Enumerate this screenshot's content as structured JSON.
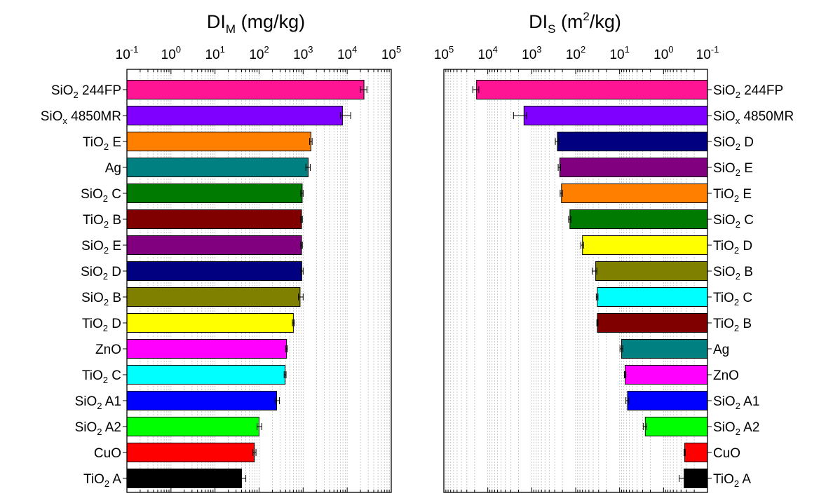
{
  "chart_data": [
    {
      "type": "bar",
      "orientation": "horizontal",
      "title": {
        "main": "DI",
        "sub": "M",
        "sup": "",
        "unit": " (mg/kg)"
      },
      "xscale": "log",
      "xlim": [
        0.1,
        100000
      ],
      "x_reversed": false,
      "tick_labels": [
        {
          "base": "10",
          "exp": "-1"
        },
        {
          "base": "10",
          "exp": "0"
        },
        {
          "base": "10",
          "exp": "1"
        },
        {
          "base": "10",
          "exp": "2"
        },
        {
          "base": "10",
          "exp": "3"
        },
        {
          "base": "10",
          "exp": "4"
        },
        {
          "base": "10",
          "exp": "5"
        }
      ],
      "category_side": "left",
      "categories": [
        {
          "main": "SiO",
          "sub": "2",
          "rest": " 244FP",
          "value": 24000,
          "err_low": 20000,
          "err_high": 28000,
          "color": "#ff1493"
        },
        {
          "main": "SiO",
          "sub": "x",
          "rest": " 4850MR",
          "value": 7800,
          "err_low": 7000,
          "err_high": 12000,
          "color": "#8000ff"
        },
        {
          "main": "TiO",
          "sub": "2",
          "rest": " E",
          "value": 1500,
          "err_low": 1400,
          "err_high": 1600,
          "color": "#ff8000"
        },
        {
          "main": "Ag",
          "sub": "",
          "rest": "",
          "value": 1300,
          "err_low": 1150,
          "err_high": 1450,
          "color": "#008080"
        },
        {
          "main": "SiO",
          "sub": "2",
          "rest": " C",
          "value": 950,
          "err_low": 880,
          "err_high": 1000,
          "color": "#007a00"
        },
        {
          "main": "TiO",
          "sub": "2",
          "rest": " B",
          "value": 920,
          "err_low": 880,
          "err_high": 960,
          "color": "#800000"
        },
        {
          "main": "SiO",
          "sub": "2",
          "rest": " E",
          "value": 920,
          "err_low": 880,
          "err_high": 960,
          "color": "#800080"
        },
        {
          "main": "SiO",
          "sub": "2",
          "rest": " D",
          "value": 930,
          "err_low": 880,
          "err_high": 1000,
          "color": "#000080"
        },
        {
          "main": "SiO",
          "sub": "2",
          "rest": " B",
          "value": 850,
          "err_low": 780,
          "err_high": 1000,
          "color": "#808000"
        },
        {
          "main": "TiO",
          "sub": "2",
          "rest": " D",
          "value": 600,
          "err_low": 570,
          "err_high": 630,
          "color": "#ffff00"
        },
        {
          "main": "ZnO",
          "sub": "",
          "rest": "",
          "value": 420,
          "err_low": 400,
          "err_high": 440,
          "color": "#ff00ff"
        },
        {
          "main": "TiO",
          "sub": "2",
          "rest": " C",
          "value": 390,
          "err_low": 370,
          "err_high": 410,
          "color": "#00ffff"
        },
        {
          "main": "SiO",
          "sub": "2",
          "rest": " A1",
          "value": 250,
          "err_low": 230,
          "err_high": 290,
          "color": "#0000ff"
        },
        {
          "main": "SiO",
          "sub": "2",
          "rest": " A2",
          "value": 100,
          "err_low": 90,
          "err_high": 115,
          "color": "#00ff00"
        },
        {
          "main": "CuO",
          "sub": "",
          "rest": "",
          "value": 78,
          "err_low": 72,
          "err_high": 85,
          "color": "#ff0000"
        },
        {
          "main": "TiO",
          "sub": "2",
          "rest": " A",
          "value": 40,
          "err_low": 35,
          "err_high": 50,
          "color": "#000000"
        }
      ]
    },
    {
      "type": "bar",
      "orientation": "horizontal",
      "title": {
        "main": "DI",
        "sub": "S",
        "sup": "2",
        "unit": " (m",
        "unit_after": "/kg)"
      },
      "xscale": "log",
      "xlim": [
        100000,
        0.1
      ],
      "x_reversed": true,
      "tick_labels": [
        {
          "base": "10",
          "exp": "5"
        },
        {
          "base": "10",
          "exp": "4"
        },
        {
          "base": "10",
          "exp": "3"
        },
        {
          "base": "10",
          "exp": "2"
        },
        {
          "base": "10",
          "exp": "1"
        },
        {
          "base": "10",
          "exp": "0"
        },
        {
          "base": "10",
          "exp": "-1"
        }
      ],
      "category_side": "right",
      "categories": [
        {
          "main": "SiO",
          "sub": "2",
          "rest": " 244FP",
          "value": 18000,
          "err_low": 16000,
          "err_high": 22000,
          "color": "#ff1493"
        },
        {
          "main": "SiO",
          "sub": "x",
          "rest": " 4850MR",
          "value": 1500,
          "err_low": 1300,
          "err_high": 2600,
          "color": "#8000ff"
        },
        {
          "main": "SiO",
          "sub": "2",
          "rest": " D",
          "value": 260,
          "err_low": 240,
          "err_high": 290,
          "color": "#000080"
        },
        {
          "main": "SiO",
          "sub": "2",
          "rest": " E",
          "value": 230,
          "err_low": 220,
          "err_high": 250,
          "color": "#800080"
        },
        {
          "main": "TiO",
          "sub": "2",
          "rest": " E",
          "value": 210,
          "err_low": 200,
          "err_high": 225,
          "color": "#ff8000"
        },
        {
          "main": "SiO",
          "sub": "2",
          "rest": " C",
          "value": 135,
          "err_low": 128,
          "err_high": 145,
          "color": "#007a00"
        },
        {
          "main": "TiO",
          "sub": "2",
          "rest": " D",
          "value": 70,
          "err_low": 66,
          "err_high": 76,
          "color": "#ffff00"
        },
        {
          "main": "SiO",
          "sub": "2",
          "rest": " B",
          "value": 35,
          "err_low": 33,
          "err_high": 42,
          "color": "#808000"
        },
        {
          "main": "TiO",
          "sub": "2",
          "rest": " C",
          "value": 32,
          "err_low": 31,
          "err_high": 34,
          "color": "#00ffff"
        },
        {
          "main": "TiO",
          "sub": "2",
          "rest": " B",
          "value": 32,
          "err_low": 31,
          "err_high": 33,
          "color": "#800000"
        },
        {
          "main": "Ag",
          "sub": "",
          "rest": "",
          "value": 9,
          "err_low": 8.5,
          "err_high": 9.8,
          "color": "#008080"
        },
        {
          "main": "ZnO",
          "sub": "",
          "rest": "",
          "value": 7.5,
          "err_low": 7.2,
          "err_high": 7.8,
          "color": "#ff00ff"
        },
        {
          "main": "SiO",
          "sub": "2",
          "rest": " A1",
          "value": 6.6,
          "err_low": 6.2,
          "err_high": 7.2,
          "color": "#0000ff"
        },
        {
          "main": "SiO",
          "sub": "2",
          "rest": " A2",
          "value": 2.6,
          "err_low": 2.4,
          "err_high": 2.9,
          "color": "#00ff00"
        },
        {
          "main": "CuO",
          "sub": "",
          "rest": "",
          "value": 0.33,
          "err_low": 0.32,
          "err_high": 0.34,
          "color": "#ff0000"
        },
        {
          "main": "TiO",
          "sub": "2",
          "rest": " A",
          "value": 0.34,
          "err_low": 0.32,
          "err_high": 0.44,
          "color": "#000000"
        }
      ]
    }
  ]
}
